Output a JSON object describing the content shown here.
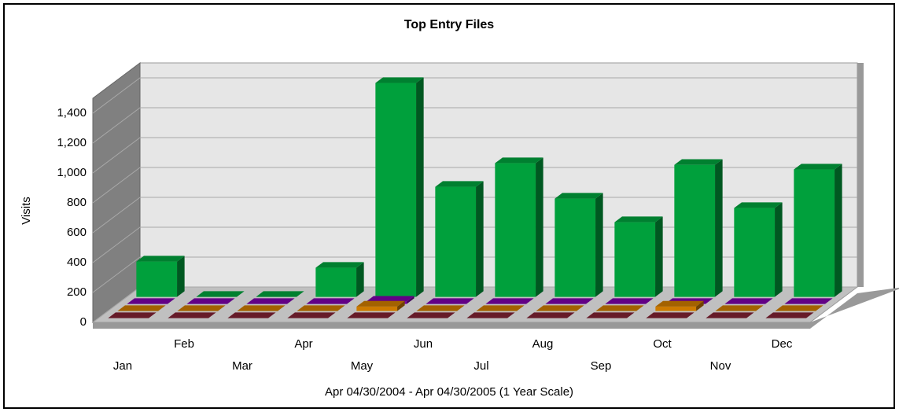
{
  "chart_data": {
    "type": "bar3d",
    "title": "Top Entry Files",
    "ylabel": "Visits",
    "xlabel": "Apr 04/30/2004 - Apr 04/30/2005 (1 Year Scale)",
    "categories": [
      "Jan",
      "Feb",
      "Mar",
      "Apr",
      "May",
      "Jun",
      "Jul",
      "Aug",
      "Sep",
      "Oct",
      "Nov",
      "Dec"
    ],
    "series": [
      {
        "color": "#7f2232",
        "values": [
          0,
          0,
          0,
          0,
          0,
          0,
          0,
          0,
          0,
          0,
          0,
          0
        ]
      },
      {
        "color": "#cc7a00",
        "values": [
          0,
          0,
          0,
          0,
          30,
          0,
          0,
          0,
          0,
          30,
          0,
          0
        ]
      },
      {
        "color": "#7a00a8",
        "values": [
          0,
          0,
          0,
          0,
          15,
          0,
          0,
          0,
          0,
          0,
          0,
          0
        ]
      },
      {
        "color": "#00a03c",
        "values": [
          237,
          0,
          0,
          195,
          1432,
          737,
          895,
          658,
          500,
          884,
          595,
          853
        ]
      }
    ],
    "ylim": [
      0,
      1500
    ],
    "yticks": [
      0,
      200,
      400,
      600,
      800,
      {
        "value": 1000,
        "label": "1,000"
      },
      {
        "value": 1200,
        "label": "1,200"
      },
      {
        "value": 1400,
        "label": "1,400"
      }
    ],
    "grid": true
  }
}
